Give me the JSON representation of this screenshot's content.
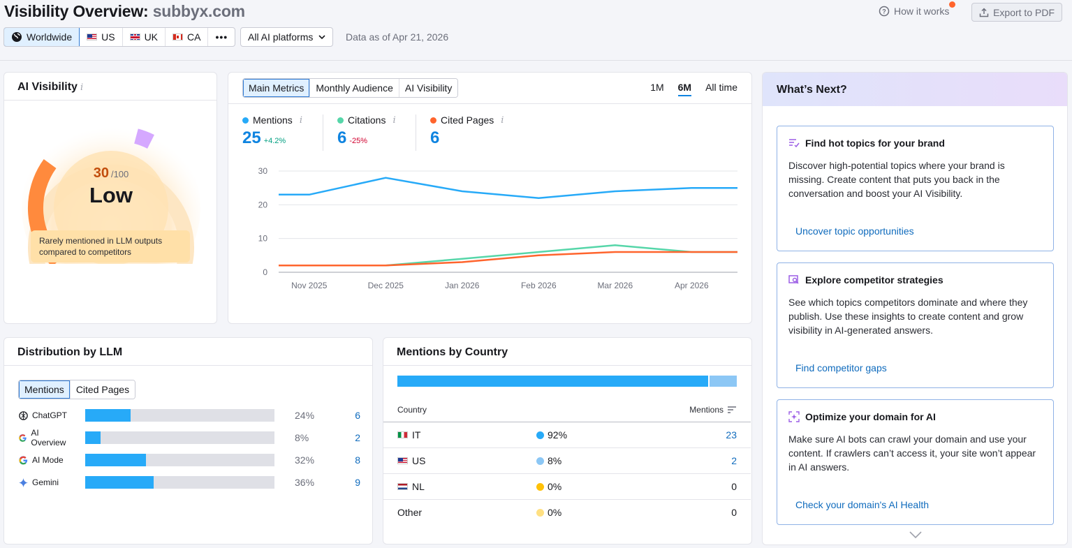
{
  "header": {
    "title": "Visibility Overview:",
    "domain": "subbyx.com",
    "how_it_works": "How it works",
    "export": "Export to PDF"
  },
  "regions": [
    {
      "label": "Worldwide",
      "active": true
    },
    {
      "label": "US"
    },
    {
      "label": "UK"
    },
    {
      "label": "CA"
    }
  ],
  "platform_select": "All AI platforms",
  "data_as_of": "Data as of Apr 21, 2026",
  "ai_visibility": {
    "title": "AI Visibility",
    "score": "30",
    "max": "/100",
    "level": "Low",
    "score_fraction": 0.3,
    "note": "Rarely mentioned in LLM outputs compared to competitors"
  },
  "main_chart": {
    "tabs": [
      "Main Metrics",
      "Monthly Audience",
      "AI Visibility"
    ],
    "ranges": [
      "1M",
      "6M",
      "All time"
    ],
    "metrics": [
      {
        "label": "Mentions",
        "value": "25",
        "change": "+4.2%",
        "color": "#27aaf8",
        "change_color": "#009f81"
      },
      {
        "label": "Citations",
        "value": "6",
        "change": "-25%",
        "color": "#56d6a9",
        "change_color": "#d1002f"
      },
      {
        "label": "Cited Pages",
        "value": "6",
        "change": "",
        "color": "#ff642d",
        "change_color": "#000000"
      }
    ]
  },
  "chart_data": {
    "type": "line",
    "x": [
      "Nov 2025",
      "Dec 2025",
      "Jan 2026",
      "Feb 2026",
      "Mar 2026",
      "Apr 2026"
    ],
    "x_values": [
      0,
      0.4,
      1.4,
      2.4,
      3.4,
      4.4,
      5.4,
      6
    ],
    "ylim": [
      0,
      30
    ],
    "yticks": [
      "30",
      "20",
      "10",
      "0"
    ],
    "grid": true,
    "series": [
      {
        "name": "Mentions",
        "color": "#27aaf8",
        "values": [
          23,
          23,
          28,
          24,
          22,
          24,
          25,
          25
        ]
      },
      {
        "name": "Citations",
        "color": "#56d6a9",
        "values": [
          2,
          2,
          2,
          4,
          6,
          8,
          6,
          6
        ]
      },
      {
        "name": "Cited Pages",
        "color": "#ff642d",
        "values": [
          2,
          2,
          2,
          3,
          5,
          6,
          6,
          6
        ]
      }
    ]
  },
  "next": {
    "title": "What’s Next?",
    "cards": [
      {
        "title": "Find hot topics for your brand",
        "text": "Discover high-potential topics where your brand is missing. Create content that puts you back in the conversation and boost your AI Visibility.",
        "link": "Uncover topic opportunities"
      },
      {
        "title": "Explore competitor strategies",
        "text": "See which topics competitors dominate and where they publish. Use these insights to create content and grow visibility in AI-generated answers.",
        "link": "Find competitor gaps"
      },
      {
        "title": "Optimize your domain for AI",
        "text": "Make sure AI bots can crawl your domain and use your content. If crawlers can’t access it, your site won’t appear in AI answers.",
        "link": "Check your domain's AI Health"
      }
    ]
  },
  "llm": {
    "title": "Distribution by LLM",
    "tabs": [
      "Mentions",
      "Cited Pages"
    ],
    "rows": [
      {
        "name": "ChatGPT",
        "pct": "24%",
        "count": "6",
        "fraction": 0.24
      },
      {
        "name": "AI Overview",
        "pct": "8%",
        "count": "2",
        "fraction": 0.08
      },
      {
        "name": "AI Mode",
        "pct": "32%",
        "count": "8",
        "fraction": 0.32
      },
      {
        "name": "Gemini",
        "pct": "36%",
        "count": "9",
        "fraction": 0.36
      }
    ]
  },
  "countries": {
    "title": "Mentions by Country",
    "col_country": "Country",
    "col_mentions": "Mentions",
    "share_bar": [
      0.92,
      0.08
    ],
    "rows": [
      {
        "code": "IT",
        "pct": "92%",
        "count": "23",
        "dot": "#27aaf8",
        "link": true
      },
      {
        "code": "US",
        "pct": "8%",
        "count": "2",
        "dot": "#8cc7f5",
        "link": true
      },
      {
        "code": "NL",
        "pct": "0%",
        "count": "0",
        "dot": "#ffc107",
        "link": false
      },
      {
        "code": "Other",
        "pct": "0%",
        "count": "0",
        "dot": "#ffe082",
        "link": false
      }
    ]
  }
}
